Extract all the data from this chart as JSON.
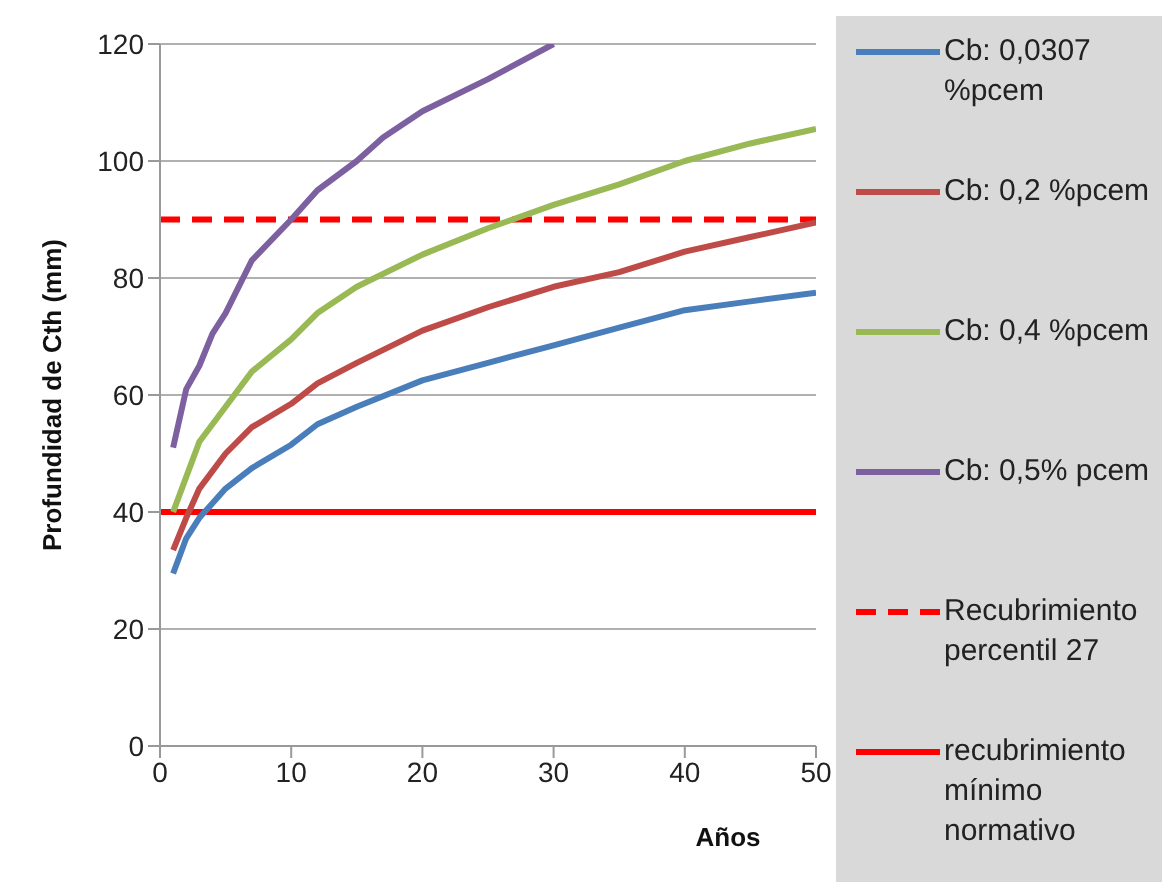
{
  "chart_data": {
    "type": "line",
    "xlabel": "Años",
    "ylabel": "Profundidad de Cth (mm)",
    "xlim": [
      0,
      50
    ],
    "xticks": [
      0,
      10,
      20,
      30,
      40,
      50
    ],
    "ylim": [
      0,
      120
    ],
    "yticks": [
      0,
      20,
      40,
      60,
      80,
      100,
      120
    ],
    "grid": "y",
    "legend": "right",
    "marker": "none",
    "line_style": "solid",
    "series": [
      {
        "name": "Cb: 0,0307 %pcem",
        "color": "#4a7ebb",
        "x": [
          1,
          2,
          3,
          4,
          5,
          7,
          10,
          12,
          15,
          20,
          25,
          30,
          35,
          40,
          45,
          50
        ],
        "values": [
          29.5,
          35.5,
          39,
          41.5,
          44,
          47.5,
          51.5,
          55,
          58,
          62.5,
          65.5,
          68.5,
          71.5,
          74.5,
          76,
          77.5
        ]
      },
      {
        "name": "Cb: 0,2 %pcem",
        "color": "#be4b48",
        "x": [
          1,
          2,
          3,
          5,
          7,
          10,
          12,
          15,
          20,
          25,
          30,
          35,
          40,
          45,
          50
        ],
        "values": [
          33.5,
          39,
          44,
          50,
          54.5,
          58.5,
          62,
          65.5,
          71,
          75,
          78.5,
          81,
          84.5,
          87,
          89.5
        ]
      },
      {
        "name": "Cb: 0,4 %pcem",
        "color": "#98b954",
        "x": [
          1,
          2,
          3,
          5,
          7,
          10,
          12,
          15,
          20,
          25,
          30,
          35,
          40,
          45,
          50
        ],
        "values": [
          40,
          46,
          52,
          58,
          64,
          69.5,
          74,
          78.5,
          84,
          88.5,
          92.5,
          96,
          100,
          103,
          105.5
        ]
      },
      {
        "name": "Cb: 0,5% pcem",
        "color": "#7d60a0",
        "x": [
          1,
          2,
          3,
          4,
          5,
          7,
          10,
          12,
          15,
          17,
          20,
          25,
          30
        ],
        "values": [
          51,
          61,
          65,
          70.5,
          74,
          83,
          90,
          95,
          100,
          104,
          108.5,
          114,
          120
        ]
      }
    ],
    "ref_lines": [
      {
        "axis": "y",
        "value": 90,
        "label": "Recubrimiento percentil 27",
        "color": "#ff0000",
        "line_style": "dashed"
      },
      {
        "axis": "y",
        "value": 40,
        "label": "recubrimiento mínimo normativo",
        "color": "#ff0000",
        "line_style": "solid"
      }
    ]
  }
}
